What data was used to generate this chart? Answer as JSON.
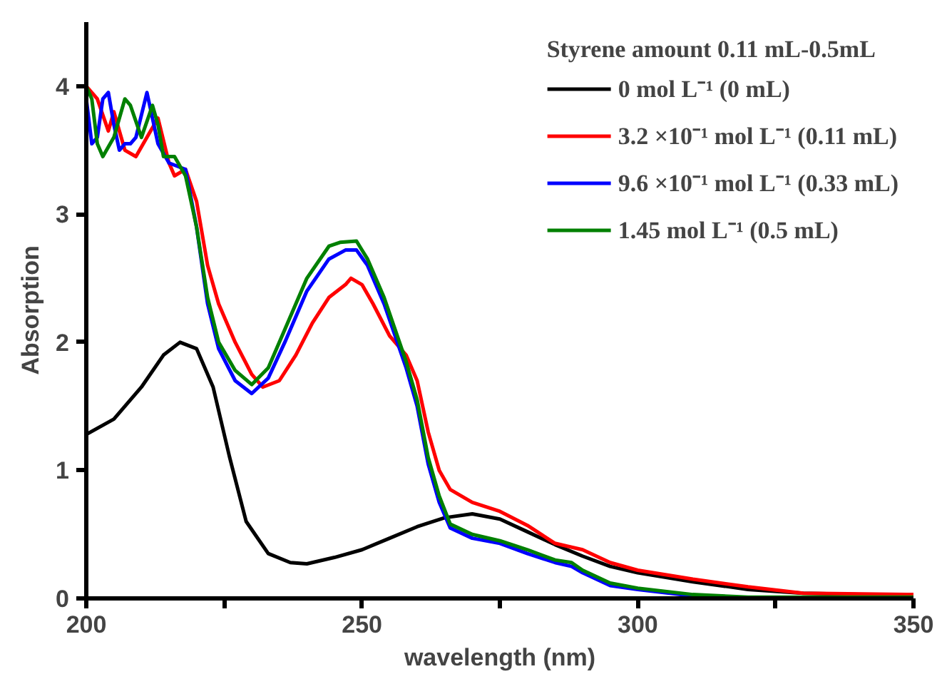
{
  "chart_data": {
    "type": "line",
    "xlabel": "wavelength (nm)",
    "ylabel": "Absorption",
    "legend_title": "Styrene amount 0.11 mL-0.5mL",
    "xlim": [
      200,
      350
    ],
    "ylim": [
      0,
      4.5
    ],
    "xticks": [
      200,
      {
        "value": 225,
        "label": null
      },
      250,
      {
        "value": 275,
        "label": null
      },
      300,
      {
        "value": 325,
        "label": null
      },
      350
    ],
    "yticks": [
      0,
      1,
      2,
      3,
      4
    ],
    "grid": false,
    "legend": "top right",
    "marker": "none",
    "line_style": "solid",
    "series": [
      {
        "name": "0 mol L⁻¹ (0 mL)",
        "color": "#000000",
        "x": [
          200,
          205,
          210,
          214,
          217,
          220,
          223,
          226,
          229,
          233,
          237,
          240,
          245,
          250,
          255,
          260,
          265,
          270,
          275,
          280,
          285,
          290,
          295,
          300,
          310,
          320,
          330,
          340,
          350
        ],
        "values": [
          1.28,
          1.4,
          1.65,
          1.9,
          2.0,
          1.95,
          1.65,
          1.1,
          0.6,
          0.35,
          0.28,
          0.27,
          0.32,
          0.38,
          0.47,
          0.56,
          0.63,
          0.66,
          0.62,
          0.52,
          0.42,
          0.33,
          0.25,
          0.2,
          0.13,
          0.07,
          0.04,
          0.03,
          0.02
        ]
      },
      {
        "name": "3.2 ×10⁻¹ mol L⁻¹ (0.11 mL)",
        "color": "#ff0000",
        "x": [
          200,
          202,
          204,
          205,
          207,
          209,
          211,
          213,
          215,
          216,
          218,
          220,
          222,
          224,
          227,
          230,
          232,
          235,
          238,
          241,
          244,
          247,
          248,
          250,
          252,
          255,
          258,
          260,
          262,
          264,
          266,
          270,
          275,
          280,
          285,
          290,
          295,
          300,
          310,
          320,
          330,
          350
        ],
        "values": [
          4.0,
          3.9,
          3.65,
          3.8,
          3.5,
          3.45,
          3.6,
          3.75,
          3.4,
          3.3,
          3.35,
          3.1,
          2.6,
          2.3,
          2.0,
          1.75,
          1.65,
          1.7,
          1.9,
          2.15,
          2.35,
          2.45,
          2.5,
          2.45,
          2.3,
          2.05,
          1.9,
          1.7,
          1.3,
          1.0,
          0.85,
          0.75,
          0.68,
          0.57,
          0.43,
          0.38,
          0.28,
          0.22,
          0.15,
          0.09,
          0.04,
          0.03
        ]
      },
      {
        "name": "9.6 ×10⁻¹ mol L⁻¹ (0.33 mL)",
        "color": "#0000ff",
        "x": [
          200,
          201,
          202,
          203,
          204,
          205,
          206,
          207,
          208,
          209,
          211,
          213,
          215,
          218,
          220,
          222,
          224,
          227,
          230,
          233,
          236,
          240,
          244,
          247,
          249,
          251,
          254,
          258,
          260,
          262,
          264,
          266,
          270,
          275,
          280,
          285,
          288,
          290,
          295,
          300,
          310
        ],
        "values": [
          3.9,
          3.55,
          3.6,
          3.9,
          3.95,
          3.7,
          3.5,
          3.55,
          3.55,
          3.6,
          3.95,
          3.55,
          3.4,
          3.35,
          2.9,
          2.3,
          1.95,
          1.7,
          1.6,
          1.72,
          2.0,
          2.4,
          2.65,
          2.72,
          2.72,
          2.6,
          2.3,
          1.8,
          1.5,
          1.05,
          0.75,
          0.55,
          0.47,
          0.43,
          0.35,
          0.28,
          0.25,
          0.2,
          0.1,
          0.07,
          0.02
        ]
      },
      {
        "name": "1.45 mol L⁻¹ (0.5 mL)",
        "color": "#008000",
        "x": [
          200,
          201,
          202,
          203,
          205,
          207,
          208,
          210,
          212,
          213,
          214,
          216,
          218,
          220,
          222,
          224,
          227,
          230,
          233,
          236,
          240,
          244,
          246,
          249,
          251,
          254,
          258,
          260,
          262,
          264,
          266,
          270,
          275,
          280,
          285,
          288,
          290,
          295,
          300,
          310,
          320,
          350
        ],
        "values": [
          4.0,
          3.9,
          3.55,
          3.45,
          3.6,
          3.9,
          3.85,
          3.6,
          3.85,
          3.7,
          3.45,
          3.45,
          3.3,
          2.9,
          2.35,
          2.0,
          1.78,
          1.67,
          1.8,
          2.1,
          2.5,
          2.75,
          2.78,
          2.79,
          2.65,
          2.35,
          1.85,
          1.55,
          1.1,
          0.8,
          0.58,
          0.5,
          0.45,
          0.38,
          0.3,
          0.28,
          0.22,
          0.12,
          0.08,
          0.03,
          0.01,
          0.01
        ]
      }
    ]
  }
}
